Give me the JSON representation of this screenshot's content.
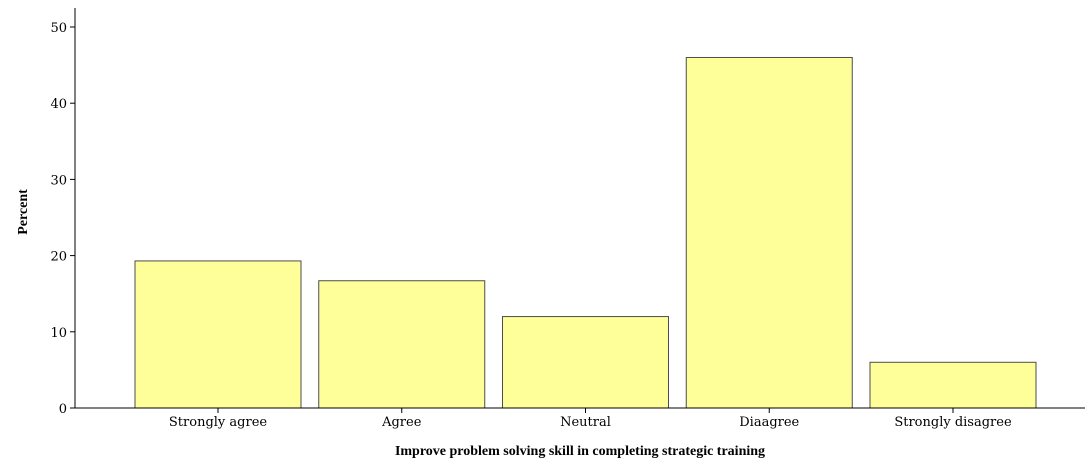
{
  "chart_data": {
    "type": "bar",
    "categories": [
      "Strongly agree",
      "Agree",
      "Neutral",
      "Diaagree",
      "Strongly disagree"
    ],
    "values": [
      19.3,
      16.7,
      12.0,
      46.0,
      6.0
    ],
    "xlabel": "Improve problem solving skill in completing strategic training",
    "ylabel": "Percent",
    "ylim": [
      0,
      50
    ],
    "yticks": [
      "0",
      "10",
      "20",
      "30",
      "40",
      "50"
    ],
    "grid": false,
    "bar_color": "#ffff9a",
    "bar_edge_color": "#4d4d4d"
  }
}
